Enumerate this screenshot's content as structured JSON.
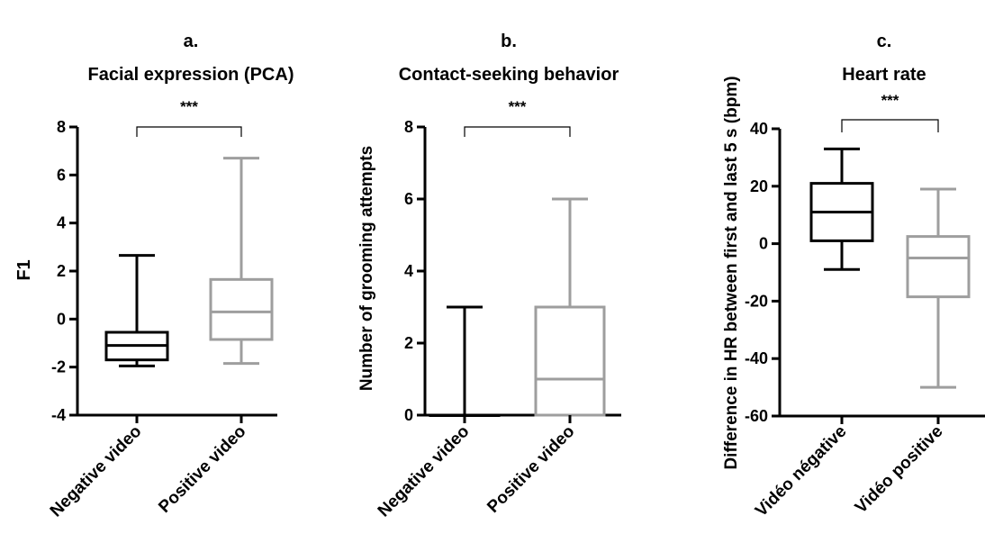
{
  "chart_data": [
    {
      "type": "box",
      "title_letter": "a.",
      "title": "Facial expression (PCA)",
      "xlabel": "",
      "ylabel": "F1",
      "ylim": [
        -4,
        8
      ],
      "yticks": [
        -4,
        -2,
        0,
        2,
        4,
        6,
        8
      ],
      "yticklabels": [
        "-4",
        "-2",
        "0",
        "2",
        "4",
        "6",
        "8"
      ],
      "categories": [
        "Negative video",
        "Positive video"
      ],
      "significance": "***",
      "boxes": [
        {
          "category": "Negative video",
          "min": -1.95,
          "q1": -1.7,
          "median": -1.1,
          "q3": -0.55,
          "max": 2.65,
          "color": "#000000"
        },
        {
          "category": "Positive video",
          "min": -1.85,
          "q1": -0.85,
          "median": 0.3,
          "q3": 1.65,
          "max": 6.7,
          "color": "#9e9e9e"
        }
      ]
    },
    {
      "type": "box",
      "title_letter": "b.",
      "title": "Contact-seeking behavior",
      "xlabel": "",
      "ylabel": "Number of grooming attempts",
      "ylim": [
        0,
        8
      ],
      "yticks": [
        0,
        2,
        4,
        6,
        8
      ],
      "yticklabels": [
        "0",
        "2",
        "4",
        "6",
        "8"
      ],
      "categories": [
        "Negative video",
        "Positive video"
      ],
      "significance": "***",
      "boxes": [
        {
          "category": "Negative video",
          "min": 0,
          "q1": 0,
          "median": 0,
          "q3": 0,
          "max": 3,
          "color": "#000000"
        },
        {
          "category": "Positive video",
          "min": 0,
          "q1": 0,
          "median": 1,
          "q3": 3,
          "max": 6,
          "color": "#9e9e9e"
        }
      ]
    },
    {
      "type": "box",
      "title_letter": "c.",
      "title": "Heart rate",
      "xlabel": "",
      "ylabel": "Difference in HR between first and last 5 s (bpm)",
      "ylim": [
        -60,
        40
      ],
      "yticks": [
        -60,
        -40,
        -20,
        0,
        20,
        40
      ],
      "yticklabels": [
        "-60",
        "-40",
        "-20",
        "0",
        "20",
        "40"
      ],
      "categories": [
        "Vidéo négative",
        "Vidéo positive"
      ],
      "significance": "***",
      "boxes": [
        {
          "category": "Vidéo négative",
          "min": -9,
          "q1": 1,
          "median": 11,
          "q3": 21,
          "max": 33,
          "color": "#000000"
        },
        {
          "category": "Vidéo positive",
          "min": -50,
          "q1": -18.5,
          "median": -5,
          "q3": 2.5,
          "max": 19,
          "color": "#9e9e9e"
        }
      ]
    }
  ]
}
